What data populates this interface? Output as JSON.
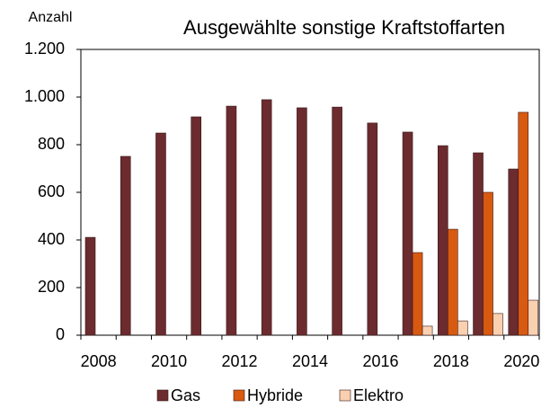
{
  "chart_data": {
    "type": "bar",
    "title": "Ausgewählte sonstige Kraftstoffarten",
    "y_label": "Anzahl",
    "categories": [
      "2008",
      null,
      "2010",
      null,
      "2012",
      null,
      "2014",
      null,
      "2016",
      null,
      "2018",
      null,
      "2020"
    ],
    "series": [
      {
        "name": "Gas",
        "color": "#6b2b2f",
        "values": [
          411,
          751,
          849,
          917,
          962,
          989,
          955,
          958,
          891,
          853,
          796,
          766,
          698
        ]
      },
      {
        "name": "Hybride",
        "color": "#d85a10",
        "values": [
          null,
          null,
          null,
          null,
          null,
          null,
          null,
          null,
          null,
          347,
          445,
          600,
          936
        ]
      },
      {
        "name": "Elektro",
        "color": "#f9d0b0",
        "values": [
          null,
          null,
          null,
          null,
          null,
          null,
          null,
          null,
          null,
          38,
          60,
          91,
          147
        ]
      }
    ],
    "ylim": [
      0,
      1200
    ],
    "yticks": [
      0,
      200,
      400,
      600,
      800,
      {
        "value": 1000,
        "label": "1.000"
      },
      {
        "value": 1200,
        "label": "1.200"
      }
    ],
    "grid": false,
    "legend": "bottom"
  }
}
